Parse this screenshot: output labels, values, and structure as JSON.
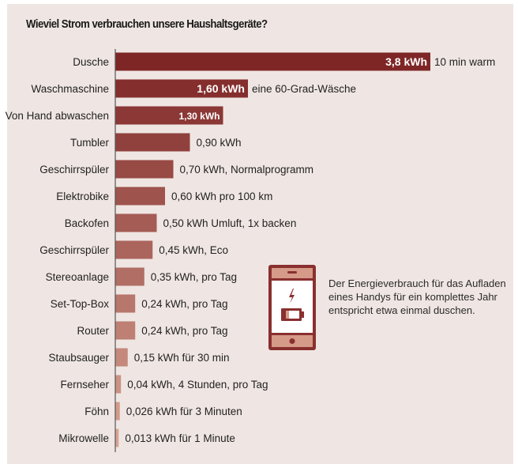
{
  "chart_data": {
    "type": "bar",
    "orientation": "horizontal",
    "title": "Wieviel Strom verbrauchen unsere Haushaltsgeräte?",
    "xlabel": "",
    "ylabel": "",
    "unit": "kWh",
    "grid": false,
    "categories": [
      "Dusche",
      "Waschmaschine",
      "Von Hand abwaschen",
      "Tumbler",
      "Geschirrspüler",
      "Elektrobike",
      "Backofen",
      "Geschirrspüler",
      "Stereoanlage",
      "Set-Top-Box",
      "Router",
      "Staubsauger",
      "Fernseher",
      "Föhn",
      "Mikrowelle"
    ],
    "values": [
      3.8,
      1.6,
      1.3,
      0.9,
      0.7,
      0.6,
      0.5,
      0.45,
      0.35,
      0.24,
      0.24,
      0.15,
      0.04,
      0.026,
      0.013
    ],
    "inside_labels": [
      "3,8 kWh",
      "1,60 kWh",
      "1,30 kWh",
      "",
      "",
      "",
      "",
      "",
      "",
      "",
      "",
      "",
      "",
      "",
      ""
    ],
    "outside_labels": [
      "10 min warm",
      "eine 60-Grad-Wäsche",
      "",
      "0,90 kWh",
      "0,70 kWh, Normalprogramm",
      "0,60 kWh pro 100 km",
      "0,50 kWh Umluft, 1x backen",
      "0,45 kWh, Eco",
      "0,35 kWh, pro Tag",
      "0,24 kWh, pro Tag",
      "0,24 kWh, pro Tag",
      "0,15 kWh für 30 min",
      "0,04 kWh, 4 Stunden, pro Tag",
      "0,026 kWh für 3 Minuten",
      "0,013 kWh für 1 Minute"
    ],
    "colors": {
      "dark": "#7e2626",
      "light": "#d8a493"
    }
  },
  "note": {
    "icon": "phone-battery-icon",
    "text": "Der Energieverbrauch für das Aufladen eines Handys für ein komplettes Jahr entspricht etwa einmal duschen."
  }
}
